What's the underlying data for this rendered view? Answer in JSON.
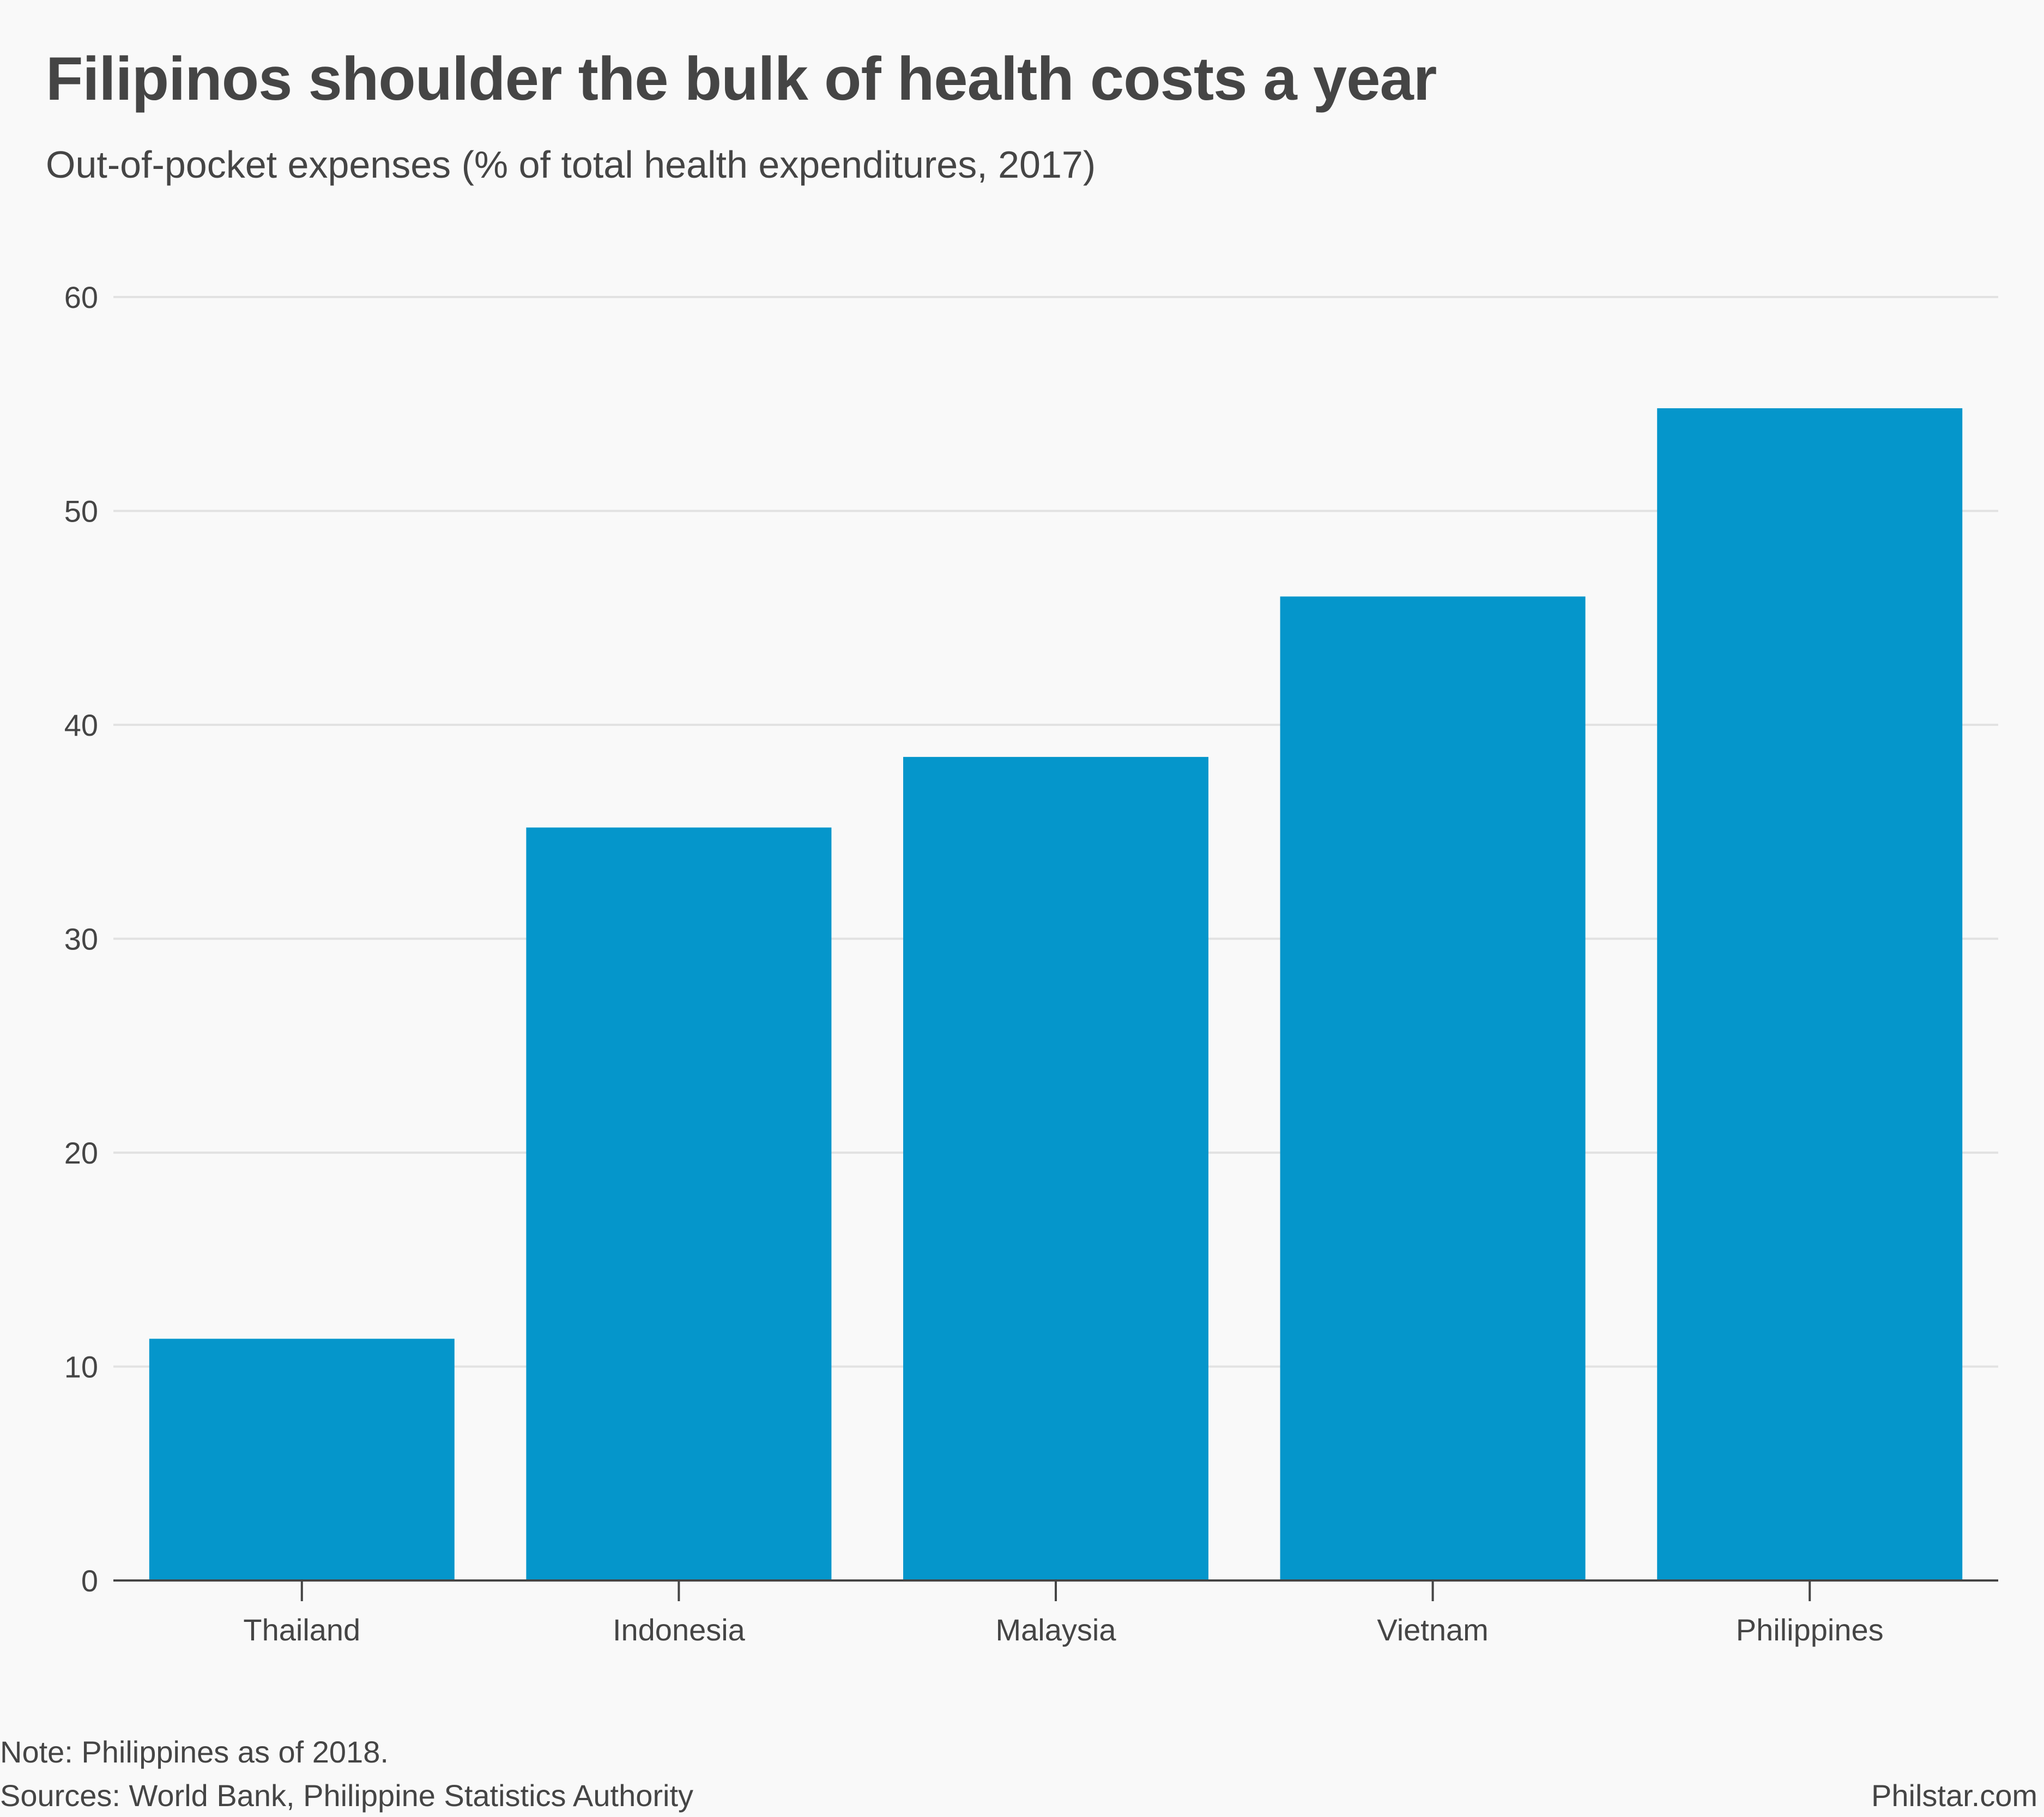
{
  "title": "Filipinos shoulder the bulk of health costs a year",
  "subtitle": "Out-of-pocket expenses (% of total health expenditures, 2017)",
  "footer": {
    "note": "Note: Philippines as of 2018.",
    "sources": "Sources: World Bank, Philippine Statistics Authority",
    "credit": "Philstar.com"
  },
  "colors": {
    "bar": "#0596cb",
    "gridline": "#e2e2e2",
    "axis": "#454545",
    "text": "#454545",
    "background": "#f9f9f9"
  },
  "chart_data": {
    "type": "bar",
    "title": "Filipinos shoulder the bulk of health costs a year",
    "subtitle": "Out-of-pocket expenses (% of total health expenditures, 2017)",
    "xlabel": "",
    "ylabel": "",
    "categories": [
      "Thailand",
      "Indonesia",
      "Malaysia",
      "Vietnam",
      "Philippines"
    ],
    "values": [
      11.3,
      35.2,
      38.5,
      46.0,
      54.8
    ],
    "ylim": [
      0,
      60
    ],
    "yticks": [
      0,
      10,
      20,
      30,
      40,
      50,
      60
    ],
    "grid": "horizontal",
    "legend": "none"
  }
}
